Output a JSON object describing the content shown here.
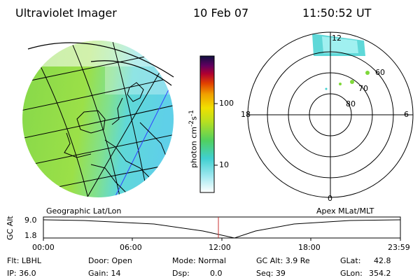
{
  "header": {
    "instrument": "Ultraviolet Imager",
    "date": "10 Feb 07",
    "time": "11:50:52 UT"
  },
  "colorbar": {
    "unit_label": "photon cm",
    "unit_exp1": "-2",
    "unit_s": "s",
    "unit_exp2": "-1",
    "ticks": [
      "100",
      "10"
    ]
  },
  "polar": {
    "mlt_labels": {
      "top": "12",
      "left": "18",
      "right": "6",
      "bottom": "0"
    },
    "lat_labels": [
      "60",
      "70",
      "80"
    ]
  },
  "map_labels": {
    "left": "Geographic Lat/Lon",
    "right": "Apex MLat/MLT"
  },
  "timeline": {
    "ylabel": "GC Alt",
    "y_ticks": [
      "9.0",
      "1.8"
    ],
    "x_ticks": [
      "00:00",
      "06:00",
      "12:00",
      "18:00",
      "23:59"
    ]
  },
  "info": {
    "flt": "Flt: LBHL",
    "ip": "IP: 36.0",
    "door": "Door: Open",
    "gain": "Gain: 14",
    "mode": "Mode: Normal",
    "dsp_label": "Dsp:",
    "dsp_value": "0.0",
    "gc_alt": "GC Alt: 3.9 Re",
    "seq": "Seq: 39",
    "glat_label": "GLat:",
    "glat_value": "42.8",
    "glon_label": "GLon:",
    "glon_value": "354.2"
  },
  "colors": {
    "bg": "#ffffff",
    "green": "#7fd83a",
    "cyan": "#5fe0e0",
    "marker": "#c83030"
  }
}
